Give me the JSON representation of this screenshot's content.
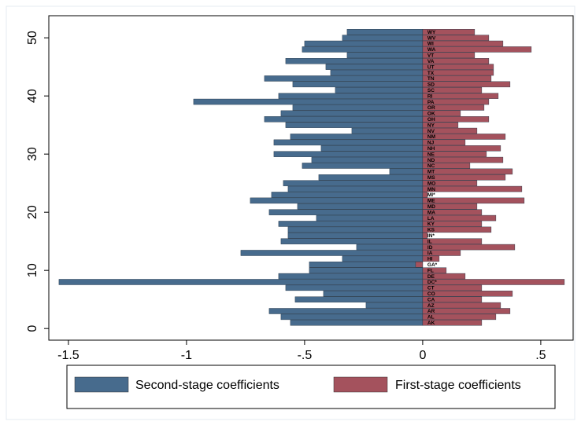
{
  "chart_data": {
    "type": "barh",
    "categories": [
      "AK",
      "AL",
      "AR",
      "AZ",
      "CA",
      "CO",
      "CT",
      "DC*",
      "DE",
      "FL",
      "GA*",
      "HI",
      "IA",
      "ID",
      "IL",
      "IN*",
      "KS",
      "KY",
      "LA",
      "MA",
      "MD",
      "ME",
      "MI*",
      "MN",
      "MO",
      "MS",
      "MT",
      "NC",
      "ND",
      "NE",
      "NH",
      "NJ",
      "NM",
      "NV",
      "NY",
      "OH",
      "OK",
      "OR",
      "PA",
      "RI",
      "SC",
      "SD",
      "TN",
      "TX",
      "UT",
      "VA",
      "VT",
      "WA",
      "WI",
      "WV",
      "WY"
    ],
    "y": [
      1,
      2,
      3,
      4,
      5,
      6,
      7,
      8,
      9,
      10,
      11,
      12,
      13,
      14,
      15,
      16,
      17,
      18,
      19,
      20,
      21,
      22,
      23,
      24,
      25,
      26,
      27,
      28,
      29,
      30,
      31,
      32,
      33,
      34,
      35,
      36,
      37,
      38,
      39,
      40,
      41,
      42,
      43,
      44,
      45,
      46,
      47,
      48,
      49,
      50,
      51
    ],
    "series": [
      {
        "name": "Second-stage coefficients",
        "color": "#476b8d",
        "values": [
          -0.56,
          -0.6,
          -0.65,
          -0.24,
          -0.54,
          -0.42,
          -0.58,
          -1.54,
          -0.61,
          -0.48,
          -0.48,
          -0.34,
          -0.77,
          -0.28,
          -0.6,
          -0.57,
          -0.57,
          -0.61,
          -0.45,
          -0.65,
          -0.53,
          -0.73,
          -0.64,
          -0.57,
          -0.59,
          -0.44,
          -0.14,
          -0.51,
          -0.47,
          -0.63,
          -0.43,
          -0.63,
          -0.56,
          -0.3,
          -0.58,
          -0.67,
          -0.6,
          -0.55,
          -0.97,
          -0.61,
          -0.37,
          -0.55,
          -0.67,
          -0.39,
          -0.41,
          -0.58,
          -0.32,
          -0.51,
          -0.5,
          -0.34,
          -0.32
        ]
      },
      {
        "name": "First-stage coefficients",
        "color": "#a4525d",
        "values": [
          0.25,
          0.31,
          0.37,
          0.33,
          0.25,
          0.38,
          0.25,
          0.6,
          0.18,
          0.1,
          -0.03,
          0.07,
          0.16,
          0.39,
          0.25,
          0.02,
          0.29,
          0.25,
          0.31,
          0.25,
          0.23,
          0.43,
          0.02,
          0.42,
          0.23,
          0.35,
          0.38,
          0.2,
          0.34,
          0.27,
          0.33,
          0.18,
          0.35,
          0.23,
          0.15,
          0.28,
          0.16,
          0.26,
          0.28,
          0.32,
          0.25,
          0.37,
          0.29,
          0.3,
          0.3,
          0.28,
          0.22,
          0.46,
          0.34,
          0.28,
          0.22
        ]
      }
    ],
    "xlim": [
      -1.583,
      0.637
    ],
    "xticks": [
      -1.5,
      -1,
      {
        "value": -0.5,
        "label": "-.5"
      },
      0,
      {
        "value": 0.5,
        "label": ".5"
      }
    ],
    "ylim": [
      -2.0,
      53.8
    ],
    "yticks": [
      0,
      10,
      20,
      30,
      40,
      50
    ]
  }
}
